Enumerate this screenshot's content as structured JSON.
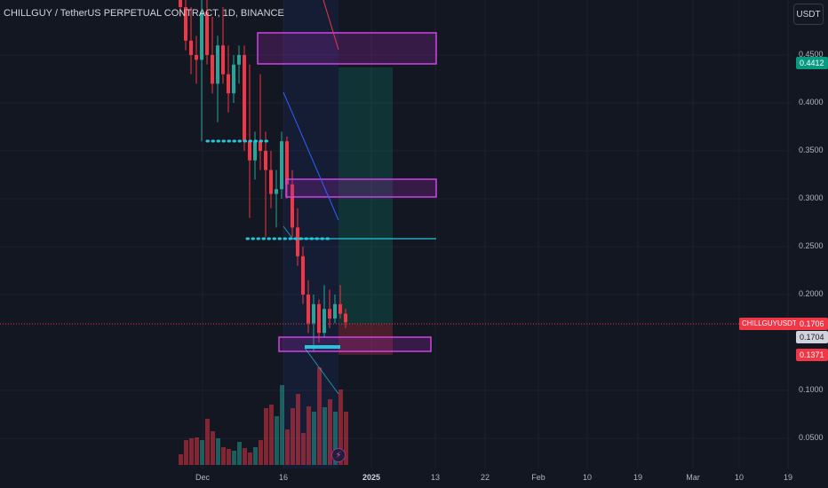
{
  "header": {
    "symbol_title": "CHILLGUY / TetherUS PERPETUAL CONTRACT, 1D, BINANCE",
    "currency_button": "USDT"
  },
  "price_badges": {
    "upper_target": "0.4412",
    "ticker_name": "CHILLGUYUSDT.P",
    "last_price": "0.1706",
    "current_price": "0.1704",
    "stop_price": "0.1371"
  },
  "colors": {
    "bull": "#26a69a",
    "bear": "#f23645",
    "zone": "#9c27b0",
    "background": "#131722",
    "grid": "#1e222d",
    "level": "#26c6da"
  },
  "chart_data": {
    "type": "candlestick",
    "y_axis_ticks": [
      "0.4500",
      "0.4000",
      "0.3500",
      "0.3000",
      "0.2500",
      "0.2000",
      "0.1000",
      "0.0500"
    ],
    "x_axis_ticks": [
      "Dec",
      "16",
      "2025",
      "13",
      "22",
      "Feb",
      "10",
      "19",
      "Mar",
      "10",
      "19"
    ],
    "ylim": [
      0.03,
      0.53
    ],
    "candles": [
      {
        "o": 0.52,
        "h": 0.54,
        "l": 0.49,
        "c": 0.5
      },
      {
        "o": 0.5,
        "h": 0.52,
        "l": 0.455,
        "c": 0.465
      },
      {
        "o": 0.465,
        "h": 0.5,
        "l": 0.43,
        "c": 0.45
      },
      {
        "o": 0.45,
        "h": 0.47,
        "l": 0.42,
        "c": 0.445
      },
      {
        "o": 0.445,
        "h": 0.51,
        "l": 0.36,
        "c": 0.495
      },
      {
        "o": 0.495,
        "h": 0.52,
        "l": 0.44,
        "c": 0.45
      },
      {
        "o": 0.45,
        "h": 0.49,
        "l": 0.41,
        "c": 0.42
      },
      {
        "o": 0.42,
        "h": 0.47,
        "l": 0.38,
        "c": 0.46
      },
      {
        "o": 0.46,
        "h": 0.5,
        "l": 0.42,
        "c": 0.43
      },
      {
        "o": 0.43,
        "h": 0.46,
        "l": 0.39,
        "c": 0.41
      },
      {
        "o": 0.41,
        "h": 0.45,
        "l": 0.4,
        "c": 0.44
      },
      {
        "o": 0.44,
        "h": 0.46,
        "l": 0.42,
        "c": 0.45
      },
      {
        "o": 0.45,
        "h": 0.46,
        "l": 0.35,
        "c": 0.36
      },
      {
        "o": 0.36,
        "h": 0.44,
        "l": 0.28,
        "c": 0.34
      },
      {
        "o": 0.34,
        "h": 0.37,
        "l": 0.32,
        "c": 0.36
      },
      {
        "o": 0.36,
        "h": 0.43,
        "l": 0.33,
        "c": 0.35
      },
      {
        "o": 0.35,
        "h": 0.37,
        "l": 0.26,
        "c": 0.33
      },
      {
        "o": 0.33,
        "h": 0.35,
        "l": 0.29,
        "c": 0.305
      },
      {
        "o": 0.305,
        "h": 0.33,
        "l": 0.27,
        "c": 0.31
      },
      {
        "o": 0.31,
        "h": 0.37,
        "l": 0.3,
        "c": 0.36
      },
      {
        "o": 0.36,
        "h": 0.365,
        "l": 0.3,
        "c": 0.315
      },
      {
        "o": 0.315,
        "h": 0.33,
        "l": 0.26,
        "c": 0.27
      },
      {
        "o": 0.27,
        "h": 0.29,
        "l": 0.23,
        "c": 0.24
      },
      {
        "o": 0.24,
        "h": 0.25,
        "l": 0.19,
        "c": 0.2
      },
      {
        "o": 0.2,
        "h": 0.215,
        "l": 0.16,
        "c": 0.17
      },
      {
        "o": 0.17,
        "h": 0.2,
        "l": 0.14,
        "c": 0.19
      },
      {
        "o": 0.19,
        "h": 0.195,
        "l": 0.15,
        "c": 0.16
      },
      {
        "o": 0.16,
        "h": 0.21,
        "l": 0.155,
        "c": 0.185
      },
      {
        "o": 0.185,
        "h": 0.205,
        "l": 0.165,
        "c": 0.175
      },
      {
        "o": 0.175,
        "h": 0.2,
        "l": 0.17,
        "c": 0.19
      },
      {
        "o": 0.19,
        "h": 0.21,
        "l": 0.175,
        "c": 0.18
      },
      {
        "o": 0.18,
        "h": 0.185,
        "l": 0.165,
        "c": 0.171
      }
    ],
    "volume": [
      12,
      28,
      30,
      31,
      28,
      52,
      38,
      30,
      20,
      18,
      16,
      26,
      19,
      14,
      20,
      28,
      64,
      68,
      55,
      90,
      40,
      64,
      80,
      36,
      66,
      60,
      110,
      65,
      74,
      60,
      85,
      60
    ]
  }
}
